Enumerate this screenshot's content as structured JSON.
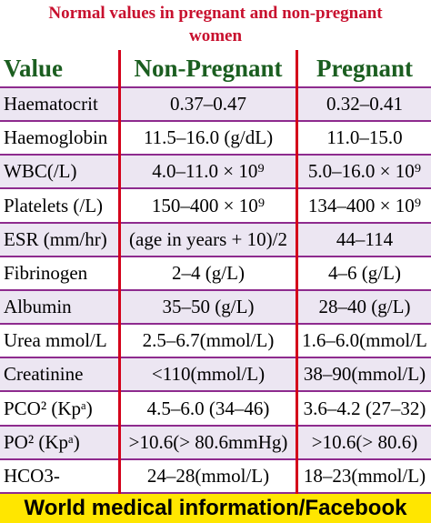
{
  "header": {
    "title_line1": "Normal values in pregnant and non-pregnant",
    "title_line2": "women"
  },
  "table": {
    "columns": [
      "Value",
      "Non-Pregnant",
      "Pregnant"
    ],
    "rows": [
      [
        "Haematocrit",
        "0.37–0.47",
        "0.32–0.41"
      ],
      [
        "Haemoglobin",
        "11.5–16.0 (g/dL)",
        "11.0–15.0"
      ],
      [
        "WBC(/L)",
        "4.0–11.0 × 10⁹",
        "5.0–16.0 × 10⁹"
      ],
      [
        "Platelets (/L)",
        "150–400 × 10⁹",
        "134–400 × 10⁹"
      ],
      [
        "ESR (mm/hr)",
        "(age in years + 10)/2",
        "44–114"
      ],
      [
        "Fibrinogen",
        "2–4 (g/L)",
        "4–6 (g/L)"
      ],
      [
        "Albumin",
        "35–50 (g/L)",
        "28–40 (g/L)"
      ],
      [
        "Urea mmol/L",
        "2.5–6.7(mmol/L)",
        "1.6–6.0(mmol/L"
      ],
      [
        "Creatinine",
        "<110(mmol/L)",
        "38–90(mmol/L)"
      ],
      [
        "PCO² (Kpᵃ)",
        "4.5–6.0 (34–46)",
        "3.6–4.2 (27–32)"
      ],
      [
        "PO² (Kpᵃ)",
        ">10.6(> 80.6mmHg)",
        ">10.6(> 80.6)"
      ],
      [
        "HCO3-",
        "24–28(mmol/L)",
        "18–23(mmol/L)"
      ]
    ]
  },
  "footer": {
    "text": "World medical information/Facebook"
  }
}
